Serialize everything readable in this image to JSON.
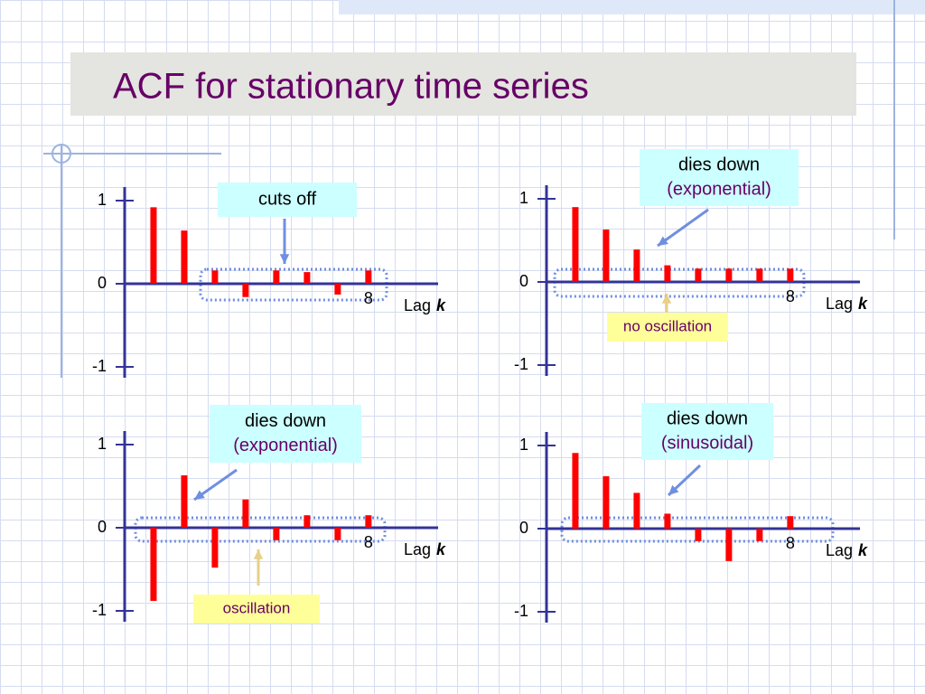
{
  "title": "ACF for stationary time series",
  "chart_data": [
    {
      "type": "bar",
      "x": [
        1,
        2,
        3,
        4,
        5,
        6,
        7,
        8
      ],
      "values": [
        0.92,
        0.64,
        0.16,
        -0.16,
        0.16,
        0.14,
        -0.13,
        0.16
      ],
      "color": "#ff0000",
      "xlim": [
        0.06,
        10.27
      ],
      "xticks": [
        8
      ],
      "ylim": [
        -1,
        1
      ],
      "yticks": [
        -1,
        0,
        1
      ],
      "x_label": "Lag",
      "x_label_var": "k",
      "callouts": [
        {
          "lines": [
            "cuts off"
          ],
          "style": "cyan"
        }
      ]
    },
    {
      "type": "bar",
      "x": [
        1,
        2,
        3,
        4,
        5,
        6,
        7,
        8
      ],
      "values": [
        0.9,
        0.63,
        0.39,
        0.2,
        0.16,
        0.16,
        0.16,
        0.16
      ],
      "color": "#ff0000",
      "xlim": [
        0.06,
        10.27
      ],
      "xticks": [
        8
      ],
      "ylim": [
        -1,
        1
      ],
      "yticks": [
        -1,
        0,
        1
      ],
      "x_label": "Lag",
      "x_label_var": "k",
      "callouts": [
        {
          "lines": [
            "dies down",
            "(exponential)"
          ],
          "style": "cyan"
        },
        {
          "lines": [
            "no oscillation"
          ],
          "style": "yellow"
        }
      ]
    },
    {
      "type": "bar",
      "x": [
        1,
        2,
        3,
        4,
        5,
        6,
        7,
        8
      ],
      "values": [
        -0.88,
        0.63,
        -0.48,
        0.34,
        -0.15,
        0.15,
        -0.15,
        0.15
      ],
      "color": "#ff0000",
      "xlim": [
        0.06,
        10.27
      ],
      "xticks": [
        8
      ],
      "ylim": [
        -1,
        1
      ],
      "yticks": [
        -1,
        0,
        1
      ],
      "x_label": "Lag",
      "x_label_var": "k",
      "callouts": [
        {
          "lines": [
            "dies down",
            "(exponential)"
          ],
          "style": "cyan"
        },
        {
          "lines": [
            "oscillation"
          ],
          "style": "yellow"
        }
      ]
    },
    {
      "type": "bar",
      "x": [
        1,
        2,
        3,
        4,
        5,
        6,
        7,
        8
      ],
      "values": [
        0.91,
        0.63,
        0.43,
        0.18,
        -0.15,
        -0.39,
        -0.15,
        0.15
      ],
      "color": "#ff0000",
      "xlim": [
        0.06,
        10.27
      ],
      "xticks": [
        8
      ],
      "ylim": [
        -1,
        1
      ],
      "yticks": [
        -1,
        0,
        1
      ],
      "x_label": "Lag",
      "x_label_var": "k",
      "callouts": [
        {
          "lines": [
            "dies down",
            "(sinusoidal)"
          ],
          "style": "cyan"
        }
      ]
    }
  ]
}
